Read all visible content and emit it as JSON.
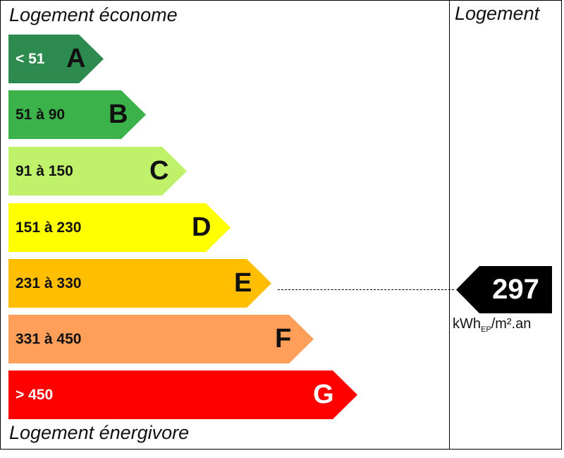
{
  "header": {
    "top_label": "Logement économe",
    "bottom_label": "Logement énergivore",
    "column_title": "Logement"
  },
  "ratings": [
    {
      "letter": "A",
      "range": "< 51",
      "color": "#2e8b4f"
    },
    {
      "letter": "B",
      "range": "51 à 90",
      "color": "#3cb24a"
    },
    {
      "letter": "C",
      "range": "91 à 150",
      "color": "#bff26a"
    },
    {
      "letter": "D",
      "range": "151 à 230",
      "color": "#ffff00"
    },
    {
      "letter": "E",
      "range": "231 à 330",
      "color": "#ffbf00"
    },
    {
      "letter": "F",
      "range": "331 à 450",
      "color": "#ff9f5a"
    },
    {
      "letter": "G",
      "range": "> 450",
      "color": "#ff0000"
    }
  ],
  "result": {
    "value": "297",
    "unit_main": "kWh",
    "unit_sub": "EP",
    "unit_rest": "/m².an",
    "rating": "E"
  }
}
